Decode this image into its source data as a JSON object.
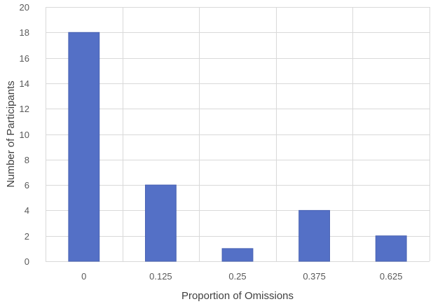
{
  "chart_data": {
    "type": "bar",
    "categories": [
      "0",
      "0.125",
      "0.25",
      "0.375",
      "0.625"
    ],
    "series": [
      {
        "values": [
          18,
          6,
          1,
          4,
          2
        ]
      }
    ],
    "title": "",
    "xlabel": "Proportion of Omissions",
    "ylabel": "Number of Participants",
    "ylim": [
      0,
      20
    ],
    "yticks": [
      0,
      2,
      4,
      6,
      8,
      10,
      12,
      14,
      16,
      18,
      20
    ],
    "grid": "vertical and horizontal",
    "legend": "none",
    "colors": {
      "bar": "#5470c6",
      "grid": "#d9d9d9",
      "text": "#595959"
    }
  }
}
